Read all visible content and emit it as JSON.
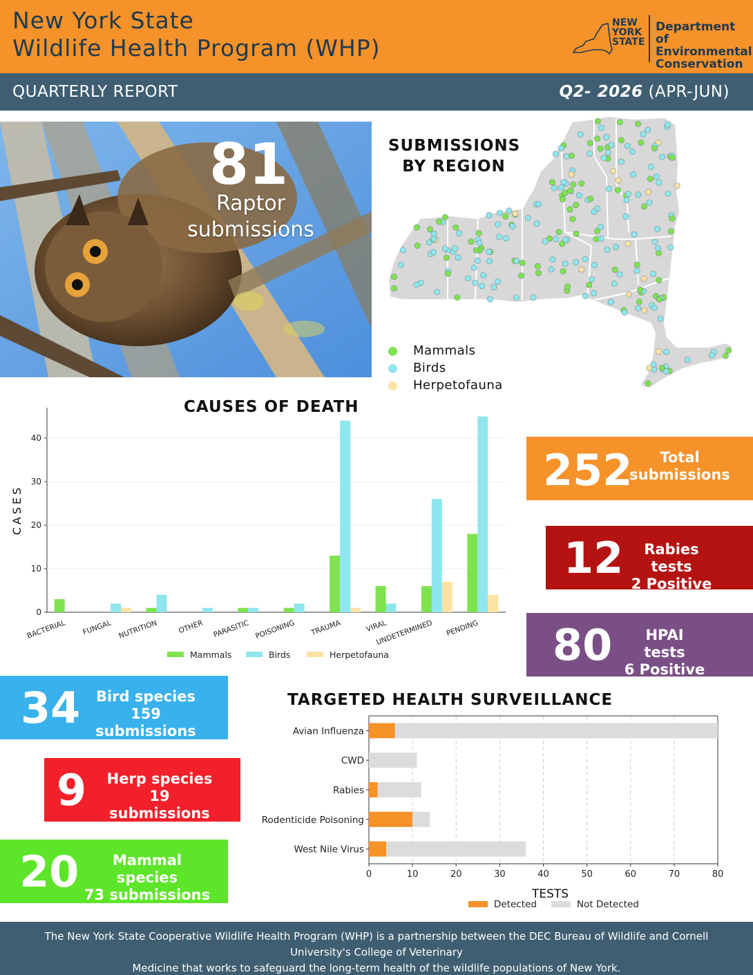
{
  "header": {
    "title_line1": "New York State",
    "title_line2": "Wildlife Health Program (WHP)",
    "logo_state": [
      "NEW",
      "YORK",
      "STATE"
    ],
    "logo_department": [
      "Department of",
      "Environmental",
      "Conservation"
    ]
  },
  "subheader": {
    "report_label": "QUARTERLY REPORT",
    "quarter": "Q2- 2026",
    "months": "(APR-JUN)"
  },
  "raptor": {
    "count": "81",
    "label_line1": "Raptor",
    "label_line2": "submissions"
  },
  "map": {
    "title_line1": "SUBMISSIONS",
    "title_line2": "BY REGION",
    "legend": [
      {
        "label": "Mammals",
        "color": "#7ee34f"
      },
      {
        "label": "Birds",
        "color": "#8fe6ee"
      },
      {
        "label": "Herpetofauna",
        "color": "#fbe3a4"
      }
    ]
  },
  "stats": {
    "total": {
      "number": "252",
      "line1": "Total",
      "line2": "submissions",
      "color": "#f5922a"
    },
    "rabies": {
      "number": "12",
      "line1": "Rabies tests",
      "line2": "2 Positive",
      "color": "#b51312"
    },
    "hpai": {
      "number": "80",
      "line1": "HPAI tests",
      "line2": "6 Positive",
      "color": "#7a4f86"
    },
    "birds": {
      "number": "34",
      "line1": "Bird species",
      "line2": "159 submissions",
      "color": "#38b1ec"
    },
    "herps": {
      "number": "9",
      "line1": "Herp species",
      "line2": "19 submissions",
      "color": "#f1202a"
    },
    "mammals": {
      "number": "20",
      "line1": "Mammal species",
      "line2": "73 submissions",
      "color": "#5de52a"
    }
  },
  "footer": {
    "line1": "The New York State Cooperative Wildlife Health Program (WHP) is a partnership between the DEC Bureau of Wildlife and Cornell University's College of Veterinary",
    "line2": "Medicine that works to safeguard the long-term health of the wildlife populations of New York."
  },
  "chart_data": [
    {
      "type": "bar",
      "title": "CAUSES OF DEATH",
      "xlabel": "",
      "ylabel": "CASES",
      "ylim": [
        0,
        47
      ],
      "yticks": [
        0,
        10,
        20,
        30,
        40
      ],
      "categories": [
        "BACTERIAL",
        "FUNGAL",
        "NUTRITION",
        "OTHER",
        "PARASITIC",
        "POISONING",
        "TRAUMA",
        "VIRAL",
        "UNDETERMINED",
        "PENDING"
      ],
      "series": [
        {
          "name": "Mammals",
          "color": "#7ee34f",
          "values": [
            3,
            0,
            1,
            0,
            1,
            1,
            13,
            6,
            6,
            18
          ]
        },
        {
          "name": "Birds",
          "color": "#8fe6ee",
          "values": [
            0,
            2,
            4,
            1,
            1,
            2,
            44,
            2,
            26,
            45
          ]
        },
        {
          "name": "Herpetofauna",
          "color": "#fbe3a4",
          "values": [
            0,
            1,
            0,
            0,
            0,
            0,
            1,
            0,
            7,
            4
          ]
        }
      ],
      "legend": "bottom"
    },
    {
      "type": "bar",
      "orientation": "horizontal",
      "stacked": true,
      "title": "TARGETED HEALTH SURVEILLANCE",
      "xlabel": "TESTS",
      "ylabel": "",
      "xlim": [
        0,
        80
      ],
      "xticks": [
        0,
        10,
        20,
        30,
        40,
        50,
        60,
        70,
        80
      ],
      "categories": [
        "Avian Influenza",
        "CWD",
        "Rabies",
        "Rodenticide Poisoning",
        "West Nile Virus"
      ],
      "series": [
        {
          "name": "Detected",
          "color": "#f5922a",
          "values": [
            6,
            0,
            2,
            10,
            4
          ]
        },
        {
          "name": "Not Detected",
          "color": "#dcdcdc",
          "values": [
            74,
            11,
            10,
            4,
            32
          ]
        }
      ],
      "grid": "vertical-dashed",
      "legend": "bottom"
    }
  ]
}
